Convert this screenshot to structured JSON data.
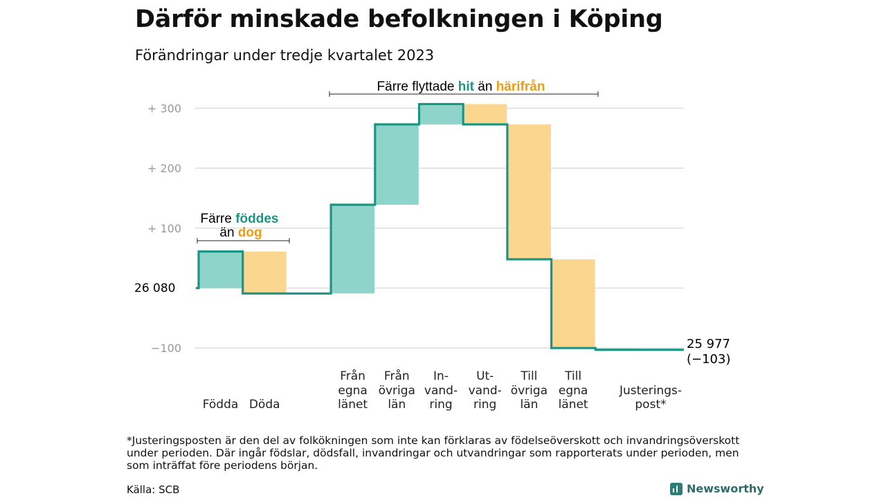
{
  "title": "Därför minskade befolkningen i Köping",
  "subtitle": "Förändringar under tredje kvartalet 2023",
  "footnote": "*Justeringsposten är den del av folkökningen som inte kan förklaras av födelseöverskott och invandringsöverskott under perioden. Där ingår födslar, dödsfall, invandringar och utvandringar som rapporterats under perioden, men som inträffat före periodens början.",
  "source": "Källa: SCB",
  "brand": "Newsworthy",
  "colors": {
    "teal": "#1d9585",
    "teal_fill": "#8ed4ca",
    "orange_fill": "#fbd68f",
    "orange_text": "#ee9c12",
    "grid": "#dddddd",
    "tick": "#9a9a9a"
  },
  "annotations": {
    "births": {
      "prefix": "Färre ",
      "hl1": "föddes",
      "mid": "än ",
      "hl2": "dog"
    },
    "migration": {
      "prefix": "Färre flyttade ",
      "hl1": "hit",
      "mid": " än ",
      "hl2": "härifrån"
    }
  },
  "chart_data": {
    "type": "waterfall",
    "title": "Därför minskade befolkningen i Köping",
    "subtitle": "Förändringar under tredje kvartalet 2023",
    "start_label": "26  080",
    "end_label_1": "25 977",
    "end_label_2": "(−103)",
    "ylim": [
      -115,
      320
    ],
    "yticks": [
      {
        "value": 300,
        "label": "+  300"
      },
      {
        "value": 200,
        "label": "+  200"
      },
      {
        "value": 100,
        "label": "+  100"
      },
      {
        "value": 0,
        "label": ""
      },
      {
        "value": -100,
        "label": "−100"
      }
    ],
    "steps": [
      {
        "label": [
          "",
          "",
          "Födda"
        ],
        "from": 0,
        "to": 61,
        "kind": "in"
      },
      {
        "label": [
          "",
          "",
          "Döda"
        ],
        "from": 61,
        "to": -9,
        "kind": "out"
      },
      {
        "label": [
          "",
          "",
          ""
        ],
        "from": -9,
        "to": -9,
        "kind": "none"
      },
      {
        "label": [
          "Från",
          "egna",
          "länet"
        ],
        "from": -9,
        "to": 139,
        "kind": "in"
      },
      {
        "label": [
          "Från",
          "övriga",
          "län"
        ],
        "from": 139,
        "to": 273,
        "kind": "in"
      },
      {
        "label": [
          "In-",
          "vand-",
          "ring"
        ],
        "from": 273,
        "to": 307,
        "kind": "in"
      },
      {
        "label": [
          "Ut-",
          "vand-",
          "ring"
        ],
        "from": 307,
        "to": 273,
        "kind": "out"
      },
      {
        "label": [
          "Till",
          "övriga",
          "län"
        ],
        "from": 273,
        "to": 48,
        "kind": "out"
      },
      {
        "label": [
          "Till",
          "egna",
          "länet"
        ],
        "from": 48,
        "to": -100,
        "kind": "out"
      },
      {
        "label": [
          "",
          "Justerings-",
          "post*"
        ],
        "from": -100,
        "to": -103,
        "kind": "out"
      }
    ]
  }
}
